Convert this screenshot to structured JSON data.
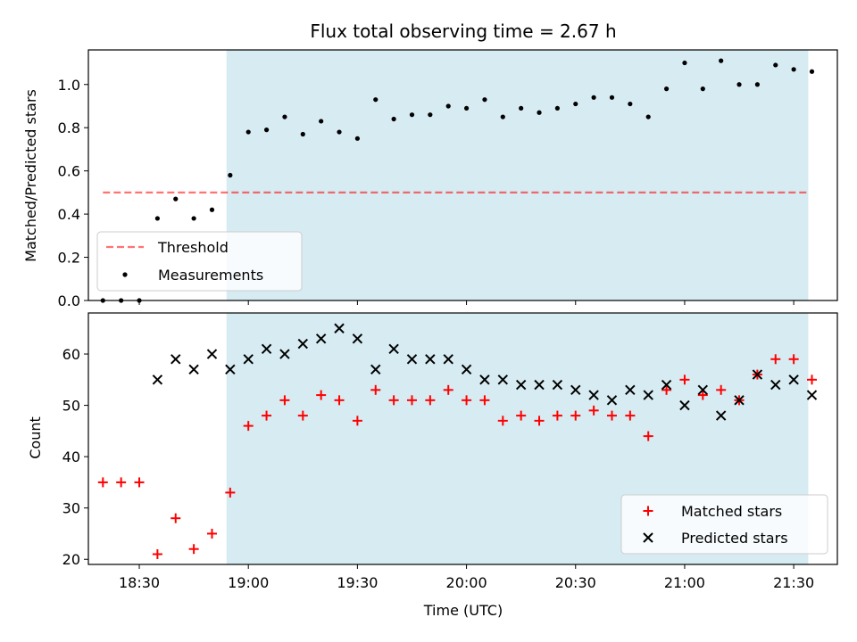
{
  "chart_data": [
    {
      "type": "scatter",
      "title": "Flux total observing time = 2.67 h",
      "ylabel": "Matched/Predicted stars",
      "xlim": [
        "18:16",
        "21:42"
      ],
      "ylim": [
        0,
        1.16
      ],
      "yticks": [
        "0.0",
        "0.2",
        "0.4",
        "0.6",
        "0.8",
        "1.0"
      ],
      "highlight_span": [
        "18:54",
        "21:34"
      ],
      "highlight_color": "#add8e6",
      "legend_position": "lower-left",
      "threshold": {
        "name": "Threshold",
        "y": 0.5,
        "x_range": [
          "18:20",
          "21:34"
        ],
        "color": "#ff0000",
        "style": "dashed"
      },
      "series": [
        {
          "name": "Measurements",
          "color": "#000000",
          "marker": "dot",
          "x": [
            "18:20",
            "18:25",
            "18:30",
            "18:35",
            "18:40",
            "18:45",
            "18:50",
            "18:55",
            "19:00",
            "19:05",
            "19:10",
            "19:15",
            "19:20",
            "19:25",
            "19:30",
            "19:35",
            "19:40",
            "19:45",
            "19:50",
            "19:55",
            "20:00",
            "20:05",
            "20:10",
            "20:15",
            "20:20",
            "20:25",
            "20:30",
            "20:35",
            "20:40",
            "20:45",
            "20:50",
            "20:55",
            "21:00",
            "21:05",
            "21:10",
            "21:15",
            "21:20",
            "21:25",
            "21:30",
            "21:35"
          ],
          "y": [
            0.0,
            0.0,
            0.0,
            0.38,
            0.47,
            0.38,
            0.42,
            0.58,
            0.78,
            0.79,
            0.85,
            0.77,
            0.83,
            0.78,
            0.75,
            0.93,
            0.84,
            0.86,
            0.86,
            0.9,
            0.89,
            0.93,
            0.85,
            0.89,
            0.87,
            0.89,
            0.91,
            0.94,
            0.94,
            0.91,
            0.85,
            0.98,
            1.1,
            0.98,
            1.11,
            1.0,
            1.0,
            1.09,
            1.07,
            1.06
          ]
        }
      ]
    },
    {
      "type": "scatter",
      "ylabel": "Count",
      "xlabel": "Time (UTC)",
      "xlim": [
        "18:16",
        "21:42"
      ],
      "ylim": [
        19,
        68
      ],
      "xticks": [
        "18:30",
        "19:00",
        "19:30",
        "20:00",
        "20:30",
        "21:00",
        "21:30"
      ],
      "yticks": [
        "20",
        "30",
        "40",
        "50",
        "60"
      ],
      "highlight_span": [
        "18:54",
        "21:34"
      ],
      "highlight_color": "#add8e6",
      "legend_position": "lower-right",
      "series": [
        {
          "name": "Matched stars",
          "color": "#ff0000",
          "marker": "plus",
          "x": [
            "18:20",
            "18:25",
            "18:30",
            "18:35",
            "18:40",
            "18:45",
            "18:50",
            "18:55",
            "19:00",
            "19:05",
            "19:10",
            "19:15",
            "19:20",
            "19:25",
            "19:30",
            "19:35",
            "19:40",
            "19:45",
            "19:50",
            "19:55",
            "20:00",
            "20:05",
            "20:10",
            "20:15",
            "20:20",
            "20:25",
            "20:30",
            "20:35",
            "20:40",
            "20:45",
            "20:50",
            "20:55",
            "21:00",
            "21:05",
            "21:10",
            "21:15",
            "21:20",
            "21:25",
            "21:30",
            "21:35"
          ],
          "y": [
            35,
            35,
            35,
            21,
            28,
            22,
            25,
            33,
            46,
            48,
            51,
            48,
            52,
            51,
            47,
            53,
            51,
            51,
            51,
            53,
            51,
            51,
            47,
            48,
            47,
            48,
            48,
            49,
            48,
            48,
            44,
            53,
            55,
            52,
            53,
            51,
            56,
            59,
            59,
            55
          ]
        },
        {
          "name": "Predicted stars",
          "color": "#000000",
          "marker": "x",
          "x": [
            "18:35",
            "18:40",
            "18:45",
            "18:50",
            "18:55",
            "19:00",
            "19:05",
            "19:10",
            "19:15",
            "19:20",
            "19:25",
            "19:30",
            "19:35",
            "19:40",
            "19:45",
            "19:50",
            "19:55",
            "20:00",
            "20:05",
            "20:10",
            "20:15",
            "20:20",
            "20:25",
            "20:30",
            "20:35",
            "20:40",
            "20:45",
            "20:50",
            "20:55",
            "21:00",
            "21:05",
            "21:10",
            "21:15",
            "21:20",
            "21:25",
            "21:30",
            "21:35"
          ],
          "y": [
            55,
            59,
            57,
            60,
            57,
            59,
            61,
            60,
            62,
            63,
            65,
            63,
            57,
            61,
            59,
            59,
            59,
            57,
            55,
            55,
            54,
            54,
            54,
            53,
            52,
            51,
            53,
            52,
            54,
            50,
            53,
            48,
            51,
            56,
            54,
            55,
            52
          ]
        }
      ]
    }
  ]
}
